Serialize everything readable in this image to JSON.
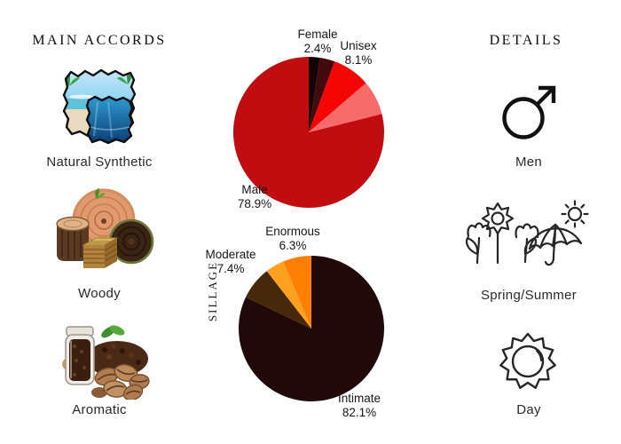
{
  "left_column": {
    "title": "MAIN ACCORDS",
    "accords": [
      {
        "label": "Natural Synthetic",
        "icon": "beach-ocean-collage"
      },
      {
        "label": "Woody",
        "icon": "wood-slices-collage"
      },
      {
        "label": "Aromatic",
        "icon": "coffee-beans-collage"
      }
    ]
  },
  "right_column": {
    "title": "DETAILS",
    "details": [
      {
        "label": "Men",
        "icon": "male-symbol-icon"
      },
      {
        "label": "Spring/Summer",
        "icon": "flowers-umbrella-sun-icon"
      },
      {
        "label": "Day",
        "icon": "sun-icon"
      }
    ]
  },
  "chart_data": [
    {
      "type": "pie",
      "name": "gender-votes",
      "title": "",
      "legend": "none",
      "label_style": "callout",
      "start_angle": "12-oclock",
      "direction": "clockwise",
      "slices": [
        {
          "label": "Female",
          "pct_text": "2.4%",
          "value": 2.4,
          "color": "#150206"
        },
        {
          "label": "",
          "pct_text": "",
          "value": 3.2,
          "color": "#420a0c",
          "estimated": true
        },
        {
          "label": "Unisex",
          "pct_text": "8.1%",
          "value": 8.1,
          "color": "#f60505"
        },
        {
          "label": "",
          "pct_text": "",
          "value": 7.4,
          "color": "#f66a6a",
          "estimated": true
        },
        {
          "label": "Male",
          "pct_text": "78.9%",
          "value": 78.9,
          "color": "#c20d10"
        }
      ]
    },
    {
      "type": "pie",
      "name": "sillage-votes",
      "title": "",
      "side_label": "SILLAGE",
      "legend": "none",
      "label_style": "callout",
      "start_angle": "12-oclock",
      "direction": "clockwise",
      "slices": [
        {
          "label": "Intimate",
          "pct_text": "82.1%",
          "value": 82.1,
          "color": "#220909"
        },
        {
          "label": "Moderate",
          "pct_text": "7.4%",
          "value": 7.4,
          "color": "#46290a"
        },
        {
          "label": "",
          "pct_text": "",
          "value": 4.2,
          "color": "#ffa01e",
          "estimated": true
        },
        {
          "label": "Enormous",
          "pct_text": "6.3%",
          "value": 6.3,
          "color": "#ff7e04"
        }
      ]
    }
  ]
}
